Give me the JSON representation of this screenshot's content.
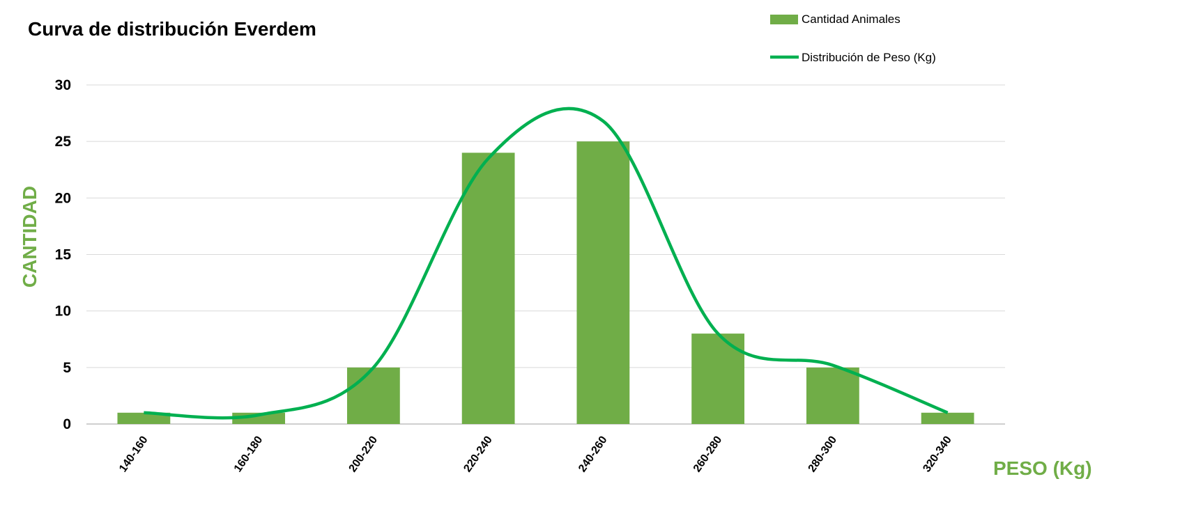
{
  "chart_data": {
    "type": "bar",
    "title": "Curva de distribución Everdem",
    "xlabel": "PESO (Kg)",
    "ylabel": "CANTIDAD",
    "categories": [
      "140-160",
      "160-180",
      "200-220",
      "220-240",
      "240-260",
      "260-280",
      "280-300",
      "320-340"
    ],
    "series": [
      {
        "name": "Cantidad Animales",
        "type": "bar",
        "color": "#70AD47",
        "values": [
          1,
          1,
          5,
          24,
          25,
          8,
          5,
          1
        ]
      },
      {
        "name": "Distribución de Peso (Kg)",
        "type": "line",
        "smooth": true,
        "color": "#00B050",
        "values": [
          1,
          0.8,
          5,
          23.5,
          26.8,
          8,
          5.2,
          1
        ]
      }
    ],
    "ylim": [
      0,
      30
    ],
    "yticks": [
      0,
      5,
      10,
      15,
      20,
      25,
      30
    ],
    "grid": true,
    "legend_position": "top-right",
    "axis_title_color": "#70AD47"
  }
}
